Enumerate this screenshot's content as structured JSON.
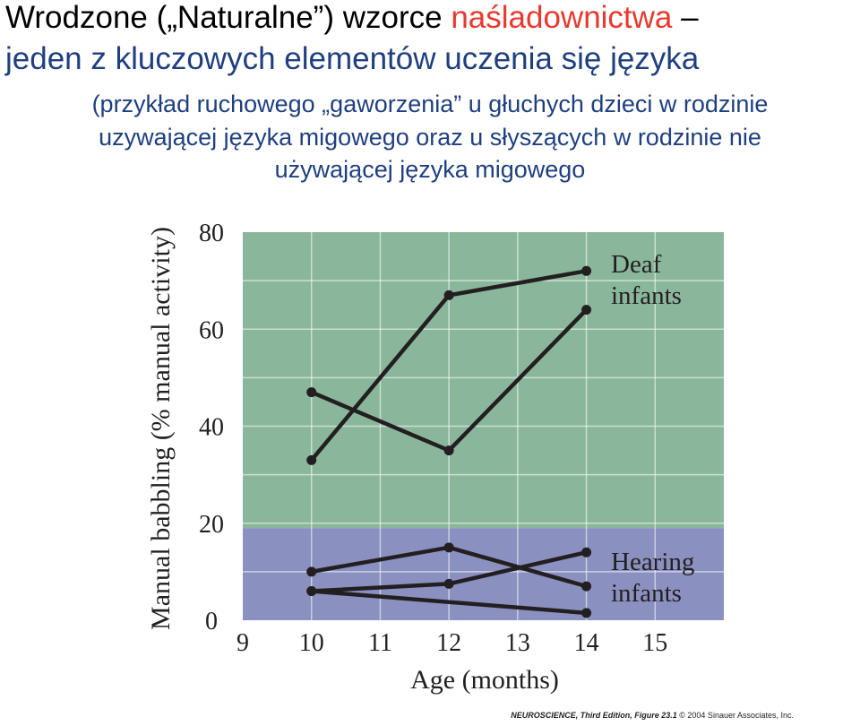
{
  "slide": {
    "title_part1": "Wrodzone („Naturalne”) wzorce ",
    "title_accent": "naśladownictwa",
    "title_dash": " –",
    "title_line2": "jeden z kluczowych elementów uczenia się języka",
    "subtitle_line1": "(przykład ruchowego „gaworzenia” u głuchych dzieci w rodzinie",
    "subtitle_line2": "uzywającej języka migowego oraz u słyszących w rodzinie nie",
    "subtitle_line3": "używającej języka migowego",
    "credit_book": "NEUROSCIENCE, Third Edition, Figure 23.1",
    "credit_rest": "© 2004 Sinauer Associates, Inc."
  },
  "colors": {
    "deaf_region": "#8ab79b",
    "hearing_region": "#8a90c0",
    "line": "#231f20",
    "title_blue": "#1f3f7f",
    "title_red": "#e8392f"
  },
  "chart_data": {
    "type": "line",
    "xlabel": "Age (months)",
    "ylabel": "Manual babbling (% manual activity)",
    "xlim": [
      9,
      16
    ],
    "ylim": [
      0,
      80
    ],
    "x_ticks": [
      9,
      10,
      11,
      12,
      13,
      14,
      15
    ],
    "y_ticks": [
      0,
      20,
      40,
      60,
      80
    ],
    "grid": true,
    "regions": [
      {
        "label": "Deaf infants",
        "y_range": [
          19,
          80
        ]
      },
      {
        "label": "Hearing infants",
        "y_range": [
          0,
          19
        ]
      }
    ],
    "series": [
      {
        "group": "deaf",
        "x": [
          10,
          12,
          14
        ],
        "y": [
          47,
          35,
          64
        ]
      },
      {
        "group": "deaf",
        "x": [
          10,
          12,
          14
        ],
        "y": [
          33,
          67,
          72
        ]
      },
      {
        "group": "hearing",
        "x": [
          10,
          12,
          14
        ],
        "y": [
          10,
          15,
          7
        ]
      },
      {
        "group": "hearing",
        "x": [
          10,
          12,
          14
        ],
        "y": [
          6,
          7.5,
          14
        ]
      },
      {
        "group": "hearing",
        "x": [
          10,
          14
        ],
        "y": [
          6,
          1.5
        ]
      }
    ]
  }
}
